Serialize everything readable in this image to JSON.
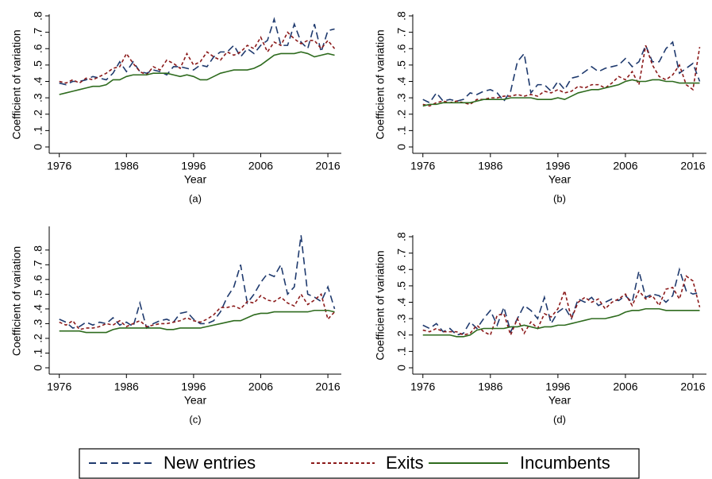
{
  "chart_data": [
    {
      "type": "line",
      "caption": "(a)",
      "xlabel": "Year",
      "ylabel": "Coefficient of variation",
      "x": [
        1976,
        1977,
        1978,
        1979,
        1980,
        1981,
        1982,
        1983,
        1984,
        1985,
        1986,
        1987,
        1988,
        1989,
        1990,
        1991,
        1992,
        1993,
        1994,
        1995,
        1996,
        1997,
        1998,
        1999,
        2000,
        2001,
        2002,
        2003,
        2004,
        2005,
        2006,
        2007,
        2008,
        2009,
        2010,
        2011,
        2012,
        2013,
        2014,
        2015,
        2016,
        2017
      ],
      "xlim": [
        1974.5,
        2018
      ],
      "xticks": [
        1976,
        1986,
        1996,
        2006,
        2016
      ],
      "ylim": [
        0,
        0.8
      ],
      "yticks": [
        0,
        {
          "value": 0.1,
          "label": ".1"
        },
        {
          "value": 0.2,
          "label": ".2"
        },
        {
          "value": 0.3,
          "label": ".3"
        },
        {
          "value": 0.4,
          "label": ".4"
        },
        {
          "value": 0.5,
          "label": ".5"
        },
        {
          "value": 0.6,
          "label": ".6"
        },
        {
          "value": 0.7,
          "label": ".7"
        },
        {
          "value": 0.8,
          "label": ".8"
        }
      ],
      "series": [
        {
          "color": "#1f3a6e",
          "dash": "dashed",
          "values": [
            0.39,
            0.38,
            0.4,
            0.4,
            0.41,
            0.43,
            0.42,
            0.41,
            0.45,
            0.52,
            0.46,
            0.52,
            0.46,
            0.45,
            0.47,
            0.46,
            0.44,
            0.49,
            0.49,
            0.48,
            0.47,
            0.5,
            0.49,
            0.55,
            0.58,
            0.58,
            0.62,
            0.55,
            0.6,
            0.57,
            0.62,
            0.65,
            0.78,
            0.62,
            0.62,
            0.75,
            0.64,
            0.6,
            0.75,
            0.58,
            0.71,
            0.72
          ]
        },
        {
          "color": "#8b1a1a",
          "dash": "dotted",
          "values": [
            0.4,
            0.39,
            0.41,
            0.39,
            0.42,
            0.41,
            0.43,
            0.45,
            0.48,
            0.49,
            0.57,
            0.51,
            0.46,
            0.44,
            0.49,
            0.47,
            0.53,
            0.51,
            0.48,
            0.57,
            0.5,
            0.52,
            0.58,
            0.55,
            0.53,
            0.58,
            0.56,
            0.58,
            0.62,
            0.6,
            0.67,
            0.58,
            0.64,
            0.62,
            0.7,
            0.66,
            0.63,
            0.65,
            0.65,
            0.6,
            0.65,
            0.6
          ]
        },
        {
          "color": "#2e6b1e",
          "dash": "solid",
          "values": [
            0.32,
            0.33,
            0.34,
            0.35,
            0.36,
            0.37,
            0.37,
            0.38,
            0.41,
            0.41,
            0.43,
            0.44,
            0.44,
            0.44,
            0.45,
            0.45,
            0.45,
            0.44,
            0.43,
            0.44,
            0.43,
            0.41,
            0.41,
            0.43,
            0.45,
            0.46,
            0.47,
            0.47,
            0.47,
            0.48,
            0.5,
            0.53,
            0.56,
            0.57,
            0.57,
            0.57,
            0.58,
            0.57,
            0.55,
            0.56,
            0.57,
            0.56
          ]
        }
      ]
    },
    {
      "type": "line",
      "caption": "(b)",
      "xlabel": "Year",
      "ylabel": "Coefficient of variation",
      "x": [
        1976,
        1977,
        1978,
        1979,
        1980,
        1981,
        1982,
        1983,
        1984,
        1985,
        1986,
        1987,
        1988,
        1989,
        1990,
        1991,
        1992,
        1993,
        1994,
        1995,
        1996,
        1997,
        1998,
        1999,
        2000,
        2001,
        2002,
        2003,
        2004,
        2005,
        2006,
        2007,
        2008,
        2009,
        2010,
        2011,
        2012,
        2013,
        2014,
        2015,
        2016,
        2017
      ],
      "xlim": [
        1974.5,
        2018
      ],
      "xticks": [
        1976,
        1986,
        1996,
        2006,
        2016
      ],
      "ylim": [
        0,
        0.8
      ],
      "yticks": [
        0,
        {
          "value": 0.1,
          "label": ".1"
        },
        {
          "value": 0.2,
          "label": ".2"
        },
        {
          "value": 0.3,
          "label": ".3"
        },
        {
          "value": 0.4,
          "label": ".4"
        },
        {
          "value": 0.5,
          "label": ".5"
        },
        {
          "value": 0.6,
          "label": ".6"
        },
        {
          "value": 0.7,
          "label": ".7"
        },
        {
          "value": 0.8,
          "label": ".8"
        }
      ],
      "series": [
        {
          "color": "#1f3a6e",
          "dash": "dashed",
          "values": [
            0.29,
            0.27,
            0.33,
            0.28,
            0.29,
            0.28,
            0.29,
            0.33,
            0.32,
            0.34,
            0.35,
            0.33,
            0.28,
            0.34,
            0.52,
            0.57,
            0.33,
            0.38,
            0.38,
            0.34,
            0.4,
            0.35,
            0.42,
            0.43,
            0.46,
            0.49,
            0.46,
            0.48,
            0.49,
            0.5,
            0.54,
            0.49,
            0.52,
            0.62,
            0.52,
            0.52,
            0.6,
            0.64,
            0.45,
            0.48,
            0.51,
            0.4
          ]
        },
        {
          "color": "#8b1a1a",
          "dash": "dotted",
          "values": [
            0.26,
            0.25,
            0.27,
            0.28,
            0.27,
            0.28,
            0.27,
            0.26,
            0.29,
            0.29,
            0.3,
            0.3,
            0.31,
            0.31,
            0.32,
            0.31,
            0.32,
            0.31,
            0.34,
            0.33,
            0.35,
            0.33,
            0.34,
            0.37,
            0.36,
            0.38,
            0.38,
            0.36,
            0.39,
            0.43,
            0.41,
            0.46,
            0.38,
            0.62,
            0.5,
            0.43,
            0.41,
            0.44,
            0.5,
            0.38,
            0.35,
            0.61
          ]
        },
        {
          "color": "#2e6b1e",
          "dash": "solid",
          "values": [
            0.25,
            0.26,
            0.26,
            0.27,
            0.27,
            0.27,
            0.27,
            0.27,
            0.28,
            0.29,
            0.29,
            0.29,
            0.29,
            0.3,
            0.3,
            0.3,
            0.3,
            0.29,
            0.29,
            0.29,
            0.3,
            0.29,
            0.31,
            0.33,
            0.34,
            0.35,
            0.35,
            0.36,
            0.37,
            0.38,
            0.4,
            0.41,
            0.4,
            0.4,
            0.41,
            0.41,
            0.4,
            0.4,
            0.39,
            0.39,
            0.39,
            0.39
          ]
        }
      ]
    },
    {
      "type": "line",
      "caption": "(c)",
      "xlabel": "Year",
      "ylabel": "Coefficient of variation",
      "x": [
        1976,
        1977,
        1978,
        1979,
        1980,
        1981,
        1982,
        1983,
        1984,
        1985,
        1986,
        1987,
        1988,
        1989,
        1990,
        1991,
        1992,
        1993,
        1994,
        1995,
        1996,
        1997,
        1998,
        1999,
        2000,
        2001,
        2002,
        2003,
        2004,
        2005,
        2006,
        2007,
        2008,
        2009,
        2010,
        2011,
        2012,
        2013,
        2014,
        2015,
        2016,
        2017
      ],
      "xlim": [
        1974.5,
        2018
      ],
      "xticks": [
        1976,
        1986,
        1996,
        2006,
        2016
      ],
      "ylim": [
        0,
        0.95
      ],
      "yticks": [
        0,
        {
          "value": 0.1,
          "label": ".1"
        },
        {
          "value": 0.2,
          "label": ".2"
        },
        {
          "value": 0.3,
          "label": ".3"
        },
        {
          "value": 0.4,
          "label": ".4"
        },
        {
          "value": 0.5,
          "label": ".5"
        },
        {
          "value": 0.6,
          "label": ".6"
        },
        {
          "value": 0.7,
          "label": ".7"
        },
        {
          "value": 0.8,
          "label": ".8"
        }
      ],
      "series": [
        {
          "color": "#1f3a6e",
          "dash": "dashed",
          "values": [
            0.33,
            0.31,
            0.27,
            0.28,
            0.31,
            0.29,
            0.31,
            0.3,
            0.34,
            0.29,
            0.31,
            0.28,
            0.44,
            0.27,
            0.3,
            0.32,
            0.33,
            0.31,
            0.37,
            0.38,
            0.33,
            0.3,
            0.3,
            0.32,
            0.38,
            0.48,
            0.55,
            0.7,
            0.44,
            0.5,
            0.58,
            0.64,
            0.62,
            0.7,
            0.5,
            0.55,
            0.9,
            0.5,
            0.48,
            0.45,
            0.55,
            0.4
          ]
        },
        {
          "color": "#8b1a1a",
          "dash": "dotted",
          "values": [
            0.31,
            0.29,
            0.32,
            0.26,
            0.27,
            0.27,
            0.28,
            0.3,
            0.29,
            0.32,
            0.28,
            0.3,
            0.32,
            0.28,
            0.29,
            0.3,
            0.3,
            0.31,
            0.32,
            0.34,
            0.32,
            0.31,
            0.33,
            0.36,
            0.41,
            0.41,
            0.42,
            0.4,
            0.45,
            0.44,
            0.49,
            0.46,
            0.45,
            0.48,
            0.44,
            0.42,
            0.5,
            0.43,
            0.46,
            0.5,
            0.33,
            0.38
          ]
        },
        {
          "color": "#2e6b1e",
          "dash": "solid",
          "values": [
            0.25,
            0.25,
            0.25,
            0.25,
            0.24,
            0.24,
            0.24,
            0.24,
            0.26,
            0.27,
            0.27,
            0.27,
            0.27,
            0.27,
            0.27,
            0.27,
            0.26,
            0.26,
            0.27,
            0.27,
            0.27,
            0.27,
            0.28,
            0.29,
            0.3,
            0.31,
            0.32,
            0.32,
            0.34,
            0.36,
            0.37,
            0.37,
            0.38,
            0.38,
            0.38,
            0.38,
            0.38,
            0.38,
            0.39,
            0.39,
            0.39,
            0.38
          ]
        }
      ]
    },
    {
      "type": "line",
      "caption": "(d)",
      "xlabel": "Year",
      "ylabel": "Coefficient of variation",
      "x": [
        1976,
        1977,
        1978,
        1979,
        1980,
        1981,
        1982,
        1983,
        1984,
        1985,
        1986,
        1987,
        1988,
        1989,
        1990,
        1991,
        1992,
        1993,
        1994,
        1995,
        1996,
        1997,
        1998,
        1999,
        2000,
        2001,
        2002,
        2003,
        2004,
        2005,
        2006,
        2007,
        2008,
        2009,
        2010,
        2011,
        2012,
        2013,
        2014,
        2015,
        2016,
        2017
      ],
      "xlim": [
        1974.5,
        2018
      ],
      "xticks": [
        1976,
        1986,
        1996,
        2006,
        2016
      ],
      "ylim": [
        0,
        0.8
      ],
      "yticks": [
        0,
        {
          "value": 0.1,
          "label": ".1"
        },
        {
          "value": 0.2,
          "label": ".2"
        },
        {
          "value": 0.3,
          "label": ".3"
        },
        {
          "value": 0.4,
          "label": ".4"
        },
        {
          "value": 0.5,
          "label": ".5"
        },
        {
          "value": 0.6,
          "label": ".6"
        },
        {
          "value": 0.7,
          "label": ".7"
        },
        {
          "value": 0.8,
          "label": ".8"
        }
      ],
      "series": [
        {
          "color": "#1f3a6e",
          "dash": "dashed",
          "values": [
            0.26,
            0.24,
            0.27,
            0.22,
            0.24,
            0.2,
            0.21,
            0.28,
            0.24,
            0.3,
            0.35,
            0.26,
            0.37,
            0.22,
            0.3,
            0.38,
            0.35,
            0.3,
            0.43,
            0.27,
            0.34,
            0.37,
            0.3,
            0.42,
            0.4,
            0.43,
            0.38,
            0.4,
            0.42,
            0.41,
            0.44,
            0.4,
            0.59,
            0.43,
            0.45,
            0.44,
            0.4,
            0.44,
            0.6,
            0.47,
            0.45,
            0.46
          ]
        },
        {
          "color": "#8b1a1a",
          "dash": "dotted",
          "values": [
            0.23,
            0.22,
            0.24,
            0.22,
            0.22,
            0.22,
            0.2,
            0.21,
            0.26,
            0.22,
            0.2,
            0.32,
            0.33,
            0.2,
            0.3,
            0.21,
            0.28,
            0.24,
            0.33,
            0.31,
            0.36,
            0.47,
            0.3,
            0.4,
            0.43,
            0.4,
            0.42,
            0.36,
            0.4,
            0.42,
            0.45,
            0.38,
            0.47,
            0.42,
            0.44,
            0.38,
            0.48,
            0.49,
            0.42,
            0.56,
            0.53,
            0.37
          ]
        },
        {
          "color": "#2e6b1e",
          "dash": "solid",
          "values": [
            0.2,
            0.2,
            0.2,
            0.2,
            0.2,
            0.19,
            0.19,
            0.2,
            0.23,
            0.24,
            0.24,
            0.24,
            0.24,
            0.25,
            0.25,
            0.26,
            0.25,
            0.24,
            0.25,
            0.25,
            0.26,
            0.26,
            0.27,
            0.28,
            0.29,
            0.3,
            0.3,
            0.3,
            0.31,
            0.32,
            0.34,
            0.35,
            0.35,
            0.36,
            0.36,
            0.36,
            0.35,
            0.35,
            0.35,
            0.35,
            0.35,
            0.35
          ]
        }
      ]
    }
  ],
  "legend": [
    "New entries",
    "Exits",
    "Incumbents"
  ]
}
